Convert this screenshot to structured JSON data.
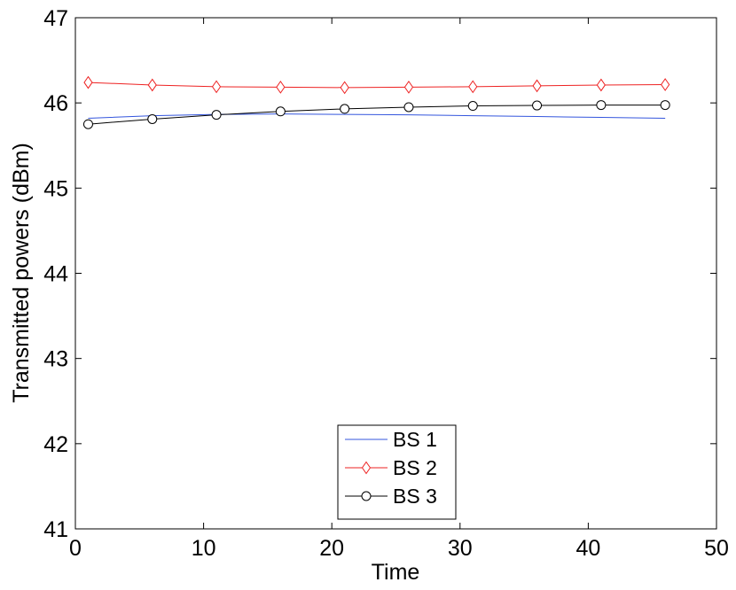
{
  "chart_data": {
    "type": "line",
    "title": "",
    "xlabel": "Time",
    "ylabel": "Transmitted powers (dBm)",
    "xlim": [
      0,
      50
    ],
    "ylim": [
      41,
      47
    ],
    "xticks": [
      0,
      10,
      20,
      30,
      40,
      50
    ],
    "yticks": [
      41,
      42,
      43,
      44,
      45,
      46,
      47
    ],
    "grid": false,
    "legend_position": "bottom-center",
    "x": [
      1,
      6,
      11,
      16,
      21,
      26,
      31,
      36,
      41,
      46
    ],
    "series": [
      {
        "name": "BS 1",
        "color": "#3355dd",
        "marker": "none",
        "values": [
          45.82,
          45.85,
          45.865,
          45.87,
          45.865,
          45.86,
          45.85,
          45.84,
          45.83,
          45.82
        ]
      },
      {
        "name": "BS 2",
        "color": "#ee2222",
        "marker": "diamond",
        "values": [
          46.24,
          46.21,
          46.19,
          46.185,
          46.18,
          46.185,
          46.19,
          46.2,
          46.21,
          46.215
        ]
      },
      {
        "name": "BS 3",
        "color": "#000000",
        "marker": "circle",
        "values": [
          45.75,
          45.81,
          45.86,
          45.9,
          45.93,
          45.95,
          45.965,
          45.97,
          45.975,
          45.975
        ]
      }
    ]
  }
}
